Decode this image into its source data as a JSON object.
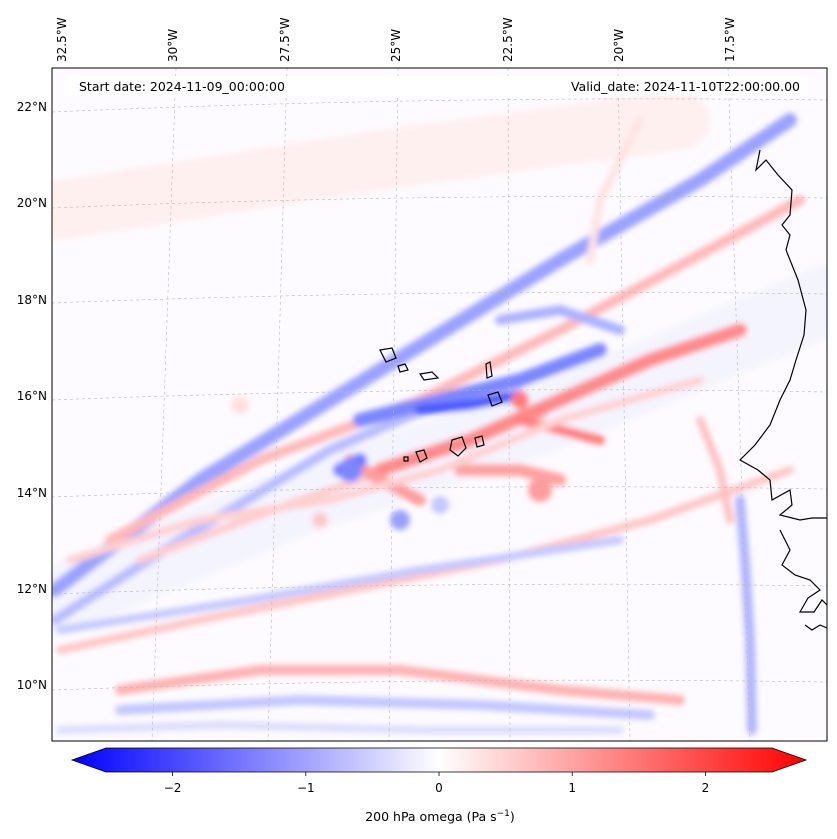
{
  "map": {
    "start_date": "Start date: 2024-11-09_00:00:00",
    "valid_date": "Valid_date: 2024-11-10T22:00:00.00",
    "lon_labels": [
      "32.5°W",
      "30°W",
      "27.5°W",
      "25°W",
      "22.5°W",
      "20°W",
      "17.5°W"
    ],
    "lat_labels": [
      "22°N",
      "20°N",
      "18°N",
      "16°N",
      "14°N",
      "12°N",
      "10°N"
    ],
    "colors": {
      "negative": "#0000ff",
      "zero": "#ffffff",
      "positive": "#ff0000",
      "coastline": "#000000"
    }
  },
  "colorbar": {
    "label_main": "200 hPa omega (Pa s",
    "label_exp": "−1",
    "label_close": ")",
    "ticks": [
      {
        "label": "−2",
        "value": -2
      },
      {
        "label": "−1",
        "value": -1
      },
      {
        "label": "0",
        "value": 0
      },
      {
        "label": "1",
        "value": 1
      },
      {
        "label": "2",
        "value": 2
      }
    ],
    "range": [
      -2.6,
      2.6
    ]
  }
}
